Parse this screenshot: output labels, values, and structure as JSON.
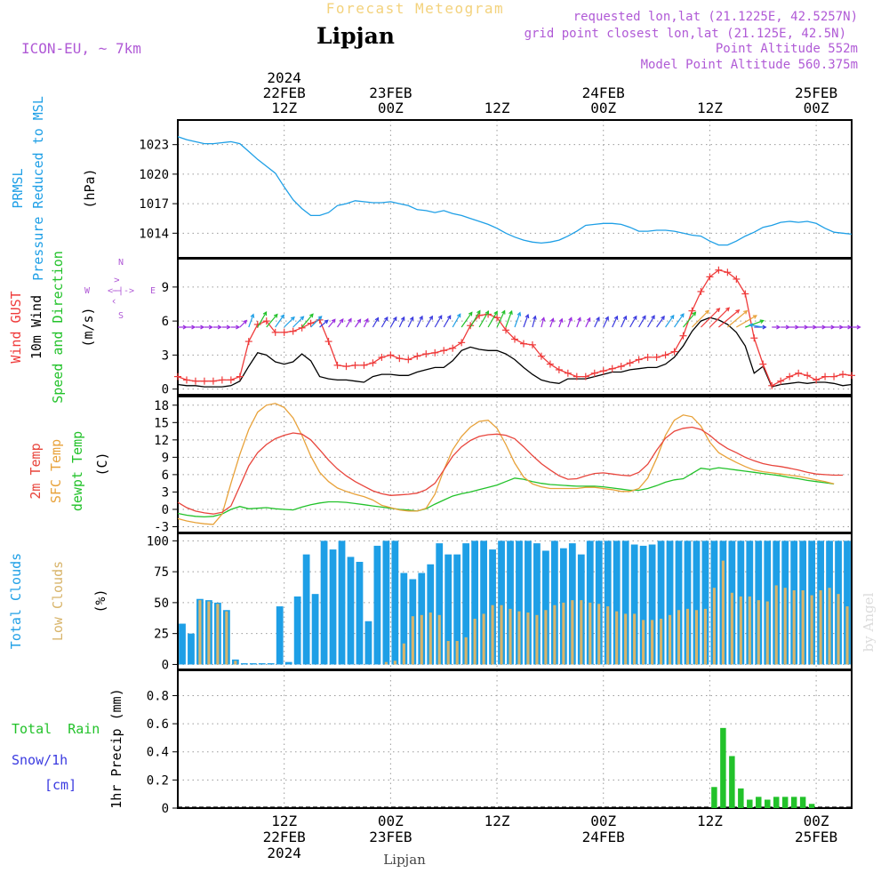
{
  "header": {
    "title_small": "Forecast Meteogram",
    "location": "Lipjan",
    "model": "ICON-EU, ~ 7km",
    "info": [
      "requested lon,lat (21.1225E, 42.5257N)",
      "grid point closest lon,lat (21.125E, 42.5N)",
      "Point Altitude 552m",
      "Model Point Altitude 560.375m"
    ],
    "footer_location": "Lipjan",
    "credit": "by Angel"
  },
  "time_axis": {
    "top_labels": [
      {
        "hour": 12,
        "lines": [
          "2024",
          "22FEB",
          "12Z"
        ]
      },
      {
        "hour": 24,
        "lines": [
          "23FEB",
          "00Z"
        ]
      },
      {
        "hour": 36,
        "lines": [
          "12Z"
        ]
      },
      {
        "hour": 48,
        "lines": [
          "24FEB",
          "00Z"
        ]
      },
      {
        "hour": 60,
        "lines": [
          "12Z"
        ]
      },
      {
        "hour": 72,
        "lines": [
          "25FEB",
          "00Z"
        ]
      }
    ],
    "bottom_labels": [
      {
        "hour": 12,
        "lines": [
          "12Z",
          "22FEB",
          "2024"
        ]
      },
      {
        "hour": 24,
        "lines": [
          "00Z",
          "23FEB"
        ]
      },
      {
        "hour": 36,
        "lines": [
          "12Z"
        ]
      },
      {
        "hour": 48,
        "lines": [
          "00Z",
          "24FEB"
        ]
      },
      {
        "hour": 60,
        "lines": [
          "12Z"
        ]
      },
      {
        "hour": 72,
        "lines": [
          "00Z",
          "25FEB"
        ]
      }
    ]
  },
  "panels": {
    "pressure": {
      "label_lines": [
        "PRMSL",
        "Pressure Reduced to MSL"
      ],
      "unit": "(hPa)",
      "ticks": [
        "1023",
        "1020",
        "1017",
        "1014"
      ],
      "color": "#1e9fe6"
    },
    "wind": {
      "label_gust": "Wind GUST",
      "label_wind": "10m Wind",
      "label_dir": "Speed and Direction",
      "unit": "(m/s)",
      "ticks": [
        "9",
        "6",
        "3",
        "0"
      ],
      "compass": {
        "n": "N",
        "s": "S",
        "w": "W",
        "e": "E",
        "ns": "^ | v",
        "we": "<-|->"
      },
      "gust_color": "#ef3b3b",
      "wind_color": "#000000"
    },
    "temp": {
      "label_t2m": "2m Temp",
      "label_sfc": "SFC Temp",
      "label_dew": "dewpt Temp",
      "unit": "(C)",
      "ticks": [
        "18",
        "15",
        "12",
        "9",
        "6",
        "3",
        "0",
        "-3"
      ],
      "t2m_color": "#e8453c",
      "sfc_color": "#e8a23a",
      "dew_color": "#22c22a"
    },
    "clouds": {
      "label_total": "Total Clouds",
      "label_low": "Low Clouds",
      "unit": "(%)",
      "ticks": [
        "100",
        "75",
        "50",
        "25",
        "0"
      ],
      "total_color": "#1e9fe6",
      "low_color": "#d8b46a"
    },
    "precip": {
      "label_rain": "Total  Rain",
      "label_snow": "Snow/1h",
      "label_snow_unit": "[cm]",
      "label_precip": "1hr Precip (mm)",
      "ticks": [
        "0.8",
        "0.6",
        "0.4",
        "0.2",
        "0"
      ],
      "rain_color": "#22c22a",
      "snow_color": "#3a3ae0"
    }
  },
  "chart_data": {
    "type": "line",
    "x_unit": "hours from 22FEB 03Z",
    "time_range": [
      0,
      76
    ],
    "pressure": {
      "ylim": [
        1011.5,
        1025.5
      ],
      "values": [
        1023.8,
        1023.5,
        1023.3,
        1023.1,
        1023.1,
        1023.2,
        1023.3,
        1023.1,
        1022.3,
        1021.5,
        1020.8,
        1020.1,
        1018.7,
        1017.4,
        1016.5,
        1015.8,
        1015.8,
        1016.1,
        1016.8,
        1017.0,
        1017.3,
        1017.2,
        1017.1,
        1017.1,
        1017.2,
        1017.0,
        1016.8,
        1016.4,
        1016.3,
        1016.1,
        1016.3,
        1016.0,
        1015.8,
        1015.5,
        1015.2,
        1014.9,
        1014.5,
        1014.0,
        1013.6,
        1013.3,
        1013.1,
        1013.0,
        1013.1,
        1013.3,
        1013.7,
        1014.2,
        1014.8,
        1014.9,
        1015.0,
        1015.0,
        1014.9,
        1014.6,
        1014.2,
        1014.2,
        1014.3,
        1014.3,
        1014.2,
        1014.0,
        1013.8,
        1013.7,
        1013.2,
        1012.8,
        1012.8,
        1013.2,
        1013.7,
        1014.1,
        1014.6,
        1014.8,
        1015.1,
        1015.2,
        1015.1,
        1015.2,
        1015.0,
        1014.5,
        1014.1,
        1014.0,
        1013.9
      ]
    },
    "wind": {
      "ylim": [
        -0.5,
        11.5
      ],
      "gust": [
        1.1,
        0.8,
        0.7,
        0.7,
        0.7,
        0.8,
        0.8,
        1.1,
        4.2,
        5.7,
        6.0,
        5.0,
        5.0,
        5.1,
        5.4,
        5.8,
        6.1,
        4.2,
        2.1,
        2.0,
        2.1,
        2.1,
        2.3,
        2.8,
        3.0,
        2.7,
        2.6,
        2.9,
        3.1,
        3.2,
        3.4,
        3.6,
        4.1,
        5.6,
        6.5,
        6.6,
        6.3,
        5.2,
        4.4,
        4.0,
        3.9,
        2.9,
        2.2,
        1.7,
        1.4,
        1.1,
        1.1,
        1.4,
        1.6,
        1.8,
        2.0,
        2.3,
        2.6,
        2.8,
        2.8,
        3.0,
        3.3,
        4.7,
        6.9,
        8.6,
        9.9,
        10.5,
        10.3,
        9.7,
        8.4,
        4.5,
        2.2,
        0.3,
        0.7,
        1.1,
        1.4,
        1.2,
        0.8,
        1.1,
        1.1,
        1.3,
        1.2
      ],
      "speed": [
        0.4,
        0.3,
        0.3,
        0.2,
        0.2,
        0.2,
        0.3,
        0.7,
        2.0,
        3.2,
        3.0,
        2.4,
        2.2,
        2.4,
        3.1,
        2.5,
        1.1,
        0.9,
        0.8,
        0.8,
        0.7,
        0.6,
        1.1,
        1.3,
        1.3,
        1.2,
        1.2,
        1.5,
        1.7,
        1.9,
        1.9,
        2.5,
        3.4,
        3.7,
        3.5,
        3.4,
        3.4,
        3.1,
        2.6,
        1.9,
        1.3,
        0.8,
        0.6,
        0.5,
        0.9,
        0.9,
        0.9,
        1.1,
        1.3,
        1.5,
        1.5,
        1.7,
        1.8,
        1.9,
        1.9,
        2.2,
        2.8,
        3.8,
        5.1,
        6.0,
        6.3,
        6.1,
        5.7,
        5.0,
        3.8,
        1.4,
        2.0,
        0.2,
        0.4,
        0.5,
        0.6,
        0.5,
        0.6,
        0.6,
        0.5,
        0.3,
        0.4
      ],
      "direction_deg": [
        270,
        270,
        270,
        270,
        270,
        270,
        270,
        225,
        200,
        210,
        220,
        215,
        225,
        225,
        220,
        225,
        230,
        220,
        215,
        210,
        215,
        205,
        210,
        210,
        210,
        205,
        205,
        205,
        210,
        210,
        210,
        210,
        215,
        210,
        210,
        210,
        205,
        200,
        200,
        200,
        195,
        195,
        200,
        200,
        200,
        200,
        205,
        205,
        205,
        205,
        205,
        210,
        210,
        210,
        215,
        215,
        215,
        220,
        225,
        225,
        225,
        230,
        230,
        240,
        250,
        270,
        100,
        270,
        270,
        270,
        270,
        270,
        270,
        270,
        270,
        270,
        270
      ]
    },
    "temperature": {
      "ylim": [
        -4,
        19.5
      ],
      "t2m": [
        1.2,
        0.3,
        -0.3,
        -0.6,
        -0.8,
        -0.5,
        0.6,
        4.0,
        7.5,
        9.8,
        11.2,
        12.2,
        12.8,
        13.2,
        13.0,
        12.0,
        10.3,
        8.5,
        7.0,
        5.8,
        4.8,
        4.0,
        3.2,
        2.7,
        2.4,
        2.5,
        2.6,
        2.8,
        3.4,
        4.5,
        6.8,
        9.2,
        10.8,
        11.9,
        12.6,
        12.9,
        13.0,
        12.8,
        12.2,
        10.8,
        9.3,
        7.9,
        6.8,
        5.8,
        5.2,
        5.3,
        5.8,
        6.2,
        6.3,
        6.1,
        5.9,
        5.8,
        6.4,
        7.8,
        10.2,
        12.3,
        13.5,
        14.0,
        14.2,
        13.8,
        12.8,
        11.5,
        10.5,
        9.8,
        9.0,
        8.4,
        7.9,
        7.6,
        7.4,
        7.1,
        6.8,
        6.4,
        6.1,
        6.0,
        5.9,
        5.9
      ],
      "sfc": [
        -1.6,
        -2.0,
        -2.3,
        -2.5,
        -2.6,
        -0.8,
        4.5,
        9.5,
        13.8,
        16.8,
        18.0,
        18.3,
        17.6,
        15.8,
        12.8,
        9.2,
        6.4,
        4.8,
        3.7,
        3.1,
        2.6,
        2.2,
        1.6,
        0.7,
        0.3,
        -0.1,
        -0.3,
        -0.3,
        0.2,
        2.6,
        6.8,
        10.3,
        12.6,
        14.2,
        15.2,
        15.4,
        14.0,
        11.2,
        8.0,
        5.6,
        4.4,
        3.9,
        3.6,
        3.6,
        3.6,
        3.6,
        3.8,
        3.8,
        3.6,
        3.4,
        3.1,
        3.1,
        3.6,
        5.4,
        8.8,
        12.8,
        15.4,
        16.3,
        16.0,
        14.4,
        11.6,
        9.8,
        8.9,
        8.1,
        7.4,
        6.8,
        6.5,
        6.3,
        6.1,
        5.9,
        5.7,
        5.4,
        5.1,
        4.8,
        4.4
      ],
      "dewpt": [
        -0.7,
        -1.0,
        -1.2,
        -1.3,
        -1.2,
        -0.8,
        0.0,
        0.5,
        0.1,
        0.2,
        0.3,
        0.1,
        0.0,
        -0.1,
        0.4,
        0.8,
        1.1,
        1.3,
        1.3,
        1.2,
        1.0,
        0.8,
        0.6,
        0.4,
        0.2,
        0.0,
        -0.1,
        -0.3,
        0.1,
        0.9,
        1.6,
        2.3,
        2.7,
        3.0,
        3.4,
        3.8,
        4.2,
        4.8,
        5.4,
        5.2,
        4.8,
        4.5,
        4.3,
        4.2,
        4.1,
        4.0,
        4.0,
        4.0,
        3.9,
        3.7,
        3.5,
        3.3,
        3.3,
        3.6,
        4.1,
        4.7,
        5.1,
        5.3,
        6.2,
        7.1,
        6.9,
        7.2,
        7.0,
        6.8,
        6.6,
        6.4,
        6.2,
        6.0,
        5.8,
        5.5,
        5.3,
        5.0,
        4.8,
        4.6,
        4.4
      ]
    },
    "clouds": {
      "ylim": [
        -4,
        106
      ],
      "total": [
        33,
        25,
        53,
        52,
        50,
        44,
        4,
        1,
        1,
        1,
        1,
        47,
        2,
        55,
        89,
        57,
        100,
        93,
        100,
        87,
        83,
        35,
        96,
        100,
        100,
        74,
        69,
        74,
        81,
        98,
        89,
        89,
        98,
        100,
        100,
        93,
        100,
        100,
        100,
        100,
        98,
        92,
        100,
        94,
        98,
        89,
        100,
        100,
        100,
        100,
        100,
        97,
        96,
        97,
        100,
        100,
        100,
        100,
        100,
        100,
        100,
        100,
        100,
        100,
        100,
        100,
        100,
        100,
        100,
        100,
        100,
        100,
        100,
        100,
        100,
        100
      ],
      "low": [
        0,
        0,
        52,
        51,
        49,
        43,
        3,
        0,
        0,
        0,
        0,
        0,
        0,
        0,
        0,
        0,
        0,
        0,
        0,
        0,
        0,
        0,
        0,
        2,
        3,
        17,
        39,
        40,
        42,
        40,
        19,
        19,
        22,
        37,
        41,
        48,
        48,
        45,
        43,
        42,
        40,
        44,
        48,
        50,
        52,
        52,
        50,
        49,
        47,
        43,
        41,
        41,
        36,
        36,
        37,
        40,
        44,
        45,
        44,
        45,
        62,
        84,
        58,
        55,
        55,
        52,
        51,
        64,
        62,
        60,
        60,
        56,
        60,
        62,
        57,
        47
      ]
    },
    "precip": {
      "ylim": [
        0,
        0.98
      ],
      "rain": [
        0,
        0,
        0,
        0,
        0,
        0,
        0,
        0,
        0,
        0,
        0,
        0,
        0,
        0,
        0,
        0,
        0,
        0,
        0,
        0,
        0,
        0,
        0,
        0,
        0,
        0,
        0,
        0,
        0,
        0,
        0,
        0,
        0,
        0,
        0,
        0,
        0,
        0,
        0,
        0,
        0,
        0,
        0,
        0,
        0,
        0,
        0,
        0,
        0,
        0,
        0,
        0,
        0,
        0,
        0,
        0,
        0,
        0,
        0,
        0,
        0.15,
        0.57,
        0.37,
        0.14,
        0.06,
        0.08,
        0.06,
        0.08,
        0.08,
        0.08,
        0.08,
        0.03,
        0,
        0,
        0
      ],
      "snow": [
        0,
        0,
        0,
        0,
        0,
        0,
        0,
        0,
        0,
        0,
        0,
        0,
        0,
        0,
        0,
        0,
        0,
        0,
        0,
        0,
        0,
        0,
        0,
        0,
        0,
        0,
        0,
        0,
        0,
        0,
        0,
        0,
        0,
        0,
        0,
        0,
        0,
        0,
        0,
        0,
        0,
        0,
        0,
        0,
        0,
        0,
        0,
        0,
        0,
        0,
        0,
        0,
        0,
        0,
        0,
        0,
        0,
        0,
        0,
        0,
        0,
        0,
        0,
        0,
        0,
        0,
        0,
        0,
        0,
        0,
        0,
        0,
        0,
        0,
        0
      ]
    }
  }
}
